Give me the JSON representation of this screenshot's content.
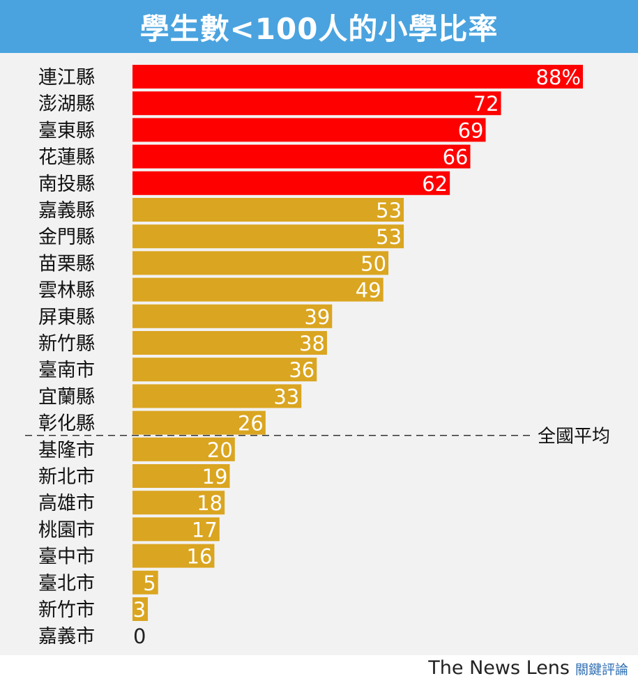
{
  "title": "學生數<100人的小學比率",
  "brand": {
    "name_en": "The News Lens",
    "name_zh": "關鍵評論"
  },
  "chart_data": {
    "type": "bar",
    "orientation": "horizontal",
    "title": "學生數<100人的小學比率",
    "categories": [
      "連江縣",
      "澎湖縣",
      "臺東縣",
      "花蓮縣",
      "南投縣",
      "嘉義縣",
      "金門縣",
      "苗栗縣",
      "雲林縣",
      "屏東縣",
      "新竹縣",
      "臺南市",
      "宜蘭縣",
      "彰化縣",
      "基隆市",
      "新北市",
      "高雄市",
      "桃園市",
      "臺中市",
      "臺北市",
      "新竹市",
      "嘉義市"
    ],
    "values": [
      88,
      72,
      69,
      66,
      62,
      53,
      53,
      50,
      49,
      39,
      38,
      36,
      33,
      26,
      20,
      19,
      18,
      17,
      16,
      5,
      3,
      0
    ],
    "value_labels": [
      "88%",
      "72",
      "69",
      "66",
      "62",
      "53",
      "53",
      "50",
      "49",
      "39",
      "38",
      "36",
      "33",
      "26",
      "20",
      "19",
      "18",
      "17",
      "16",
      "5",
      "3",
      "0"
    ],
    "highlight_count": 5,
    "colors": {
      "highlight": "#ff0000",
      "default": "#daa520",
      "title_bg": "#4aa3df"
    },
    "reference_line": {
      "label": "全國平均",
      "position": "between 彰化縣 and 基隆市",
      "style": "dashed"
    },
    "xlim": [
      0,
      88
    ],
    "grid": false,
    "legend": "none"
  }
}
